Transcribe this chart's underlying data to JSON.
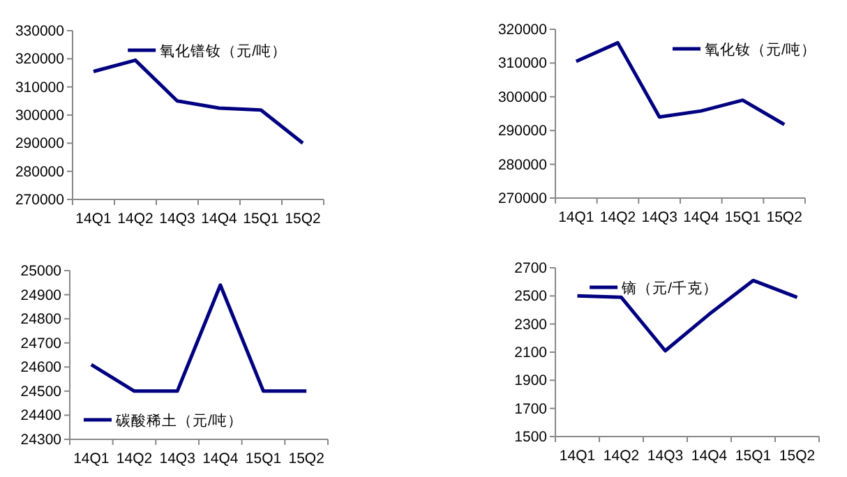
{
  "chart_data": [
    {
      "type": "line",
      "categories": [
        "14Q1",
        "14Q2",
        "14Q3",
        "14Q4",
        "15Q1",
        "15Q2"
      ],
      "series": [
        {
          "name": "氧化镨钕（元/吨）",
          "color": "#000080",
          "values": [
            315500,
            319500,
            305000,
            302500,
            301800,
            290000
          ]
        }
      ],
      "ylim": [
        270000,
        330000
      ],
      "yticks": [
        270000,
        280000,
        290000,
        300000,
        310000,
        320000,
        330000
      ],
      "legend": "top",
      "grid": false
    },
    {
      "type": "line",
      "categories": [
        "14Q1",
        "14Q2",
        "14Q3",
        "14Q4",
        "15Q1",
        "15Q2"
      ],
      "series": [
        {
          "name": "氧化钕（元/吨）",
          "color": "#000080",
          "values": [
            310500,
            316000,
            294000,
            295800,
            299000,
            291800
          ]
        }
      ],
      "ylim": [
        270000,
        320000
      ],
      "yticks": [
        270000,
        280000,
        290000,
        300000,
        310000,
        320000
      ],
      "legend": "top right",
      "grid": false
    },
    {
      "type": "line",
      "categories": [
        "14Q1",
        "14Q2",
        "14Q3",
        "14Q4",
        "15Q1",
        "15Q2"
      ],
      "series": [
        {
          "name": "碳酸稀土（元/吨）",
          "color": "#000080",
          "values": [
            24610,
            24500,
            24500,
            24940,
            24500,
            24500
          ]
        }
      ],
      "ylim": [
        24300,
        25000
      ],
      "yticks": [
        24300,
        24400,
        24500,
        24600,
        24700,
        24800,
        24900,
        25000
      ],
      "legend": "bottom left",
      "grid": false
    },
    {
      "type": "line",
      "categories": [
        "14Q1",
        "14Q2",
        "14Q3",
        "14Q4",
        "15Q1",
        "15Q2"
      ],
      "series": [
        {
          "name": "镝（元/千克）",
          "color": "#000080",
          "values": [
            2500,
            2490,
            2110,
            2370,
            2610,
            2490
          ]
        }
      ],
      "ylim": [
        1500,
        2700
      ],
      "yticks": [
        1500,
        1700,
        1900,
        2100,
        2300,
        2500,
        2700
      ],
      "legend": "top left",
      "grid": false
    }
  ]
}
